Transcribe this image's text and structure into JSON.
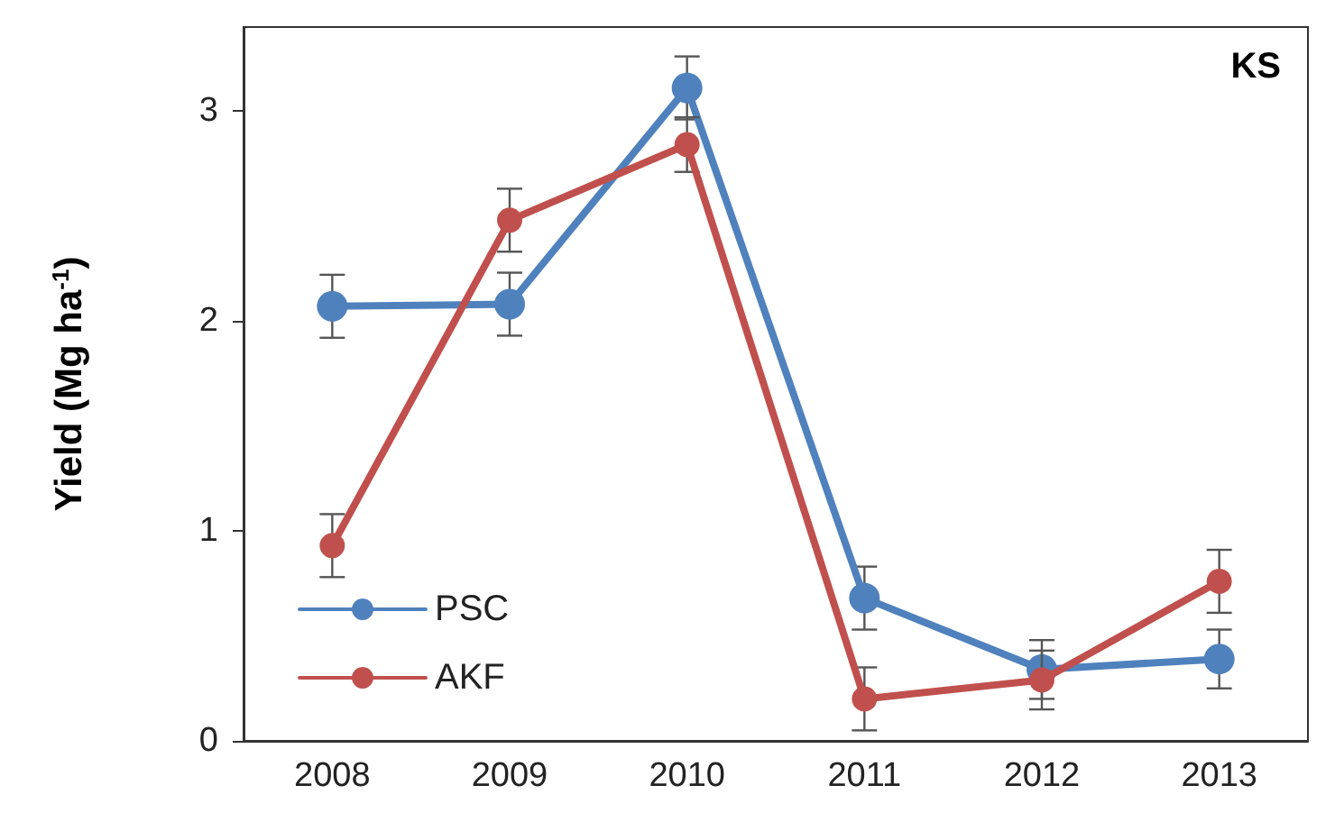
{
  "chart_data": {
    "type": "line",
    "title": "KS",
    "ylabel": "Yield (Mg ha$^{-1}$)",
    "categories": [
      "2008",
      "2009",
      "2010",
      "2011",
      "2012",
      "2013"
    ],
    "series": [
      {
        "name": "PSC",
        "color": "#4f81bd",
        "values": [
          2.07,
          2.08,
          3.11,
          0.68,
          0.34,
          0.39
        ],
        "errors": [
          0.15,
          0.15,
          0.15,
          0.15,
          0.14,
          0.14
        ]
      },
      {
        "name": "AKF",
        "color": "#c0504d",
        "values": [
          0.93,
          2.48,
          2.84,
          0.2,
          0.29,
          0.76
        ],
        "errors": [
          0.15,
          0.15,
          0.13,
          0.15,
          0.14,
          0.15
        ]
      }
    ],
    "ylim": [
      0,
      3.4
    ],
    "yticks": [
      0,
      1,
      2,
      3
    ],
    "grid": false,
    "legend": "bottom left",
    "marker": "circle",
    "line_style": "solid"
  }
}
